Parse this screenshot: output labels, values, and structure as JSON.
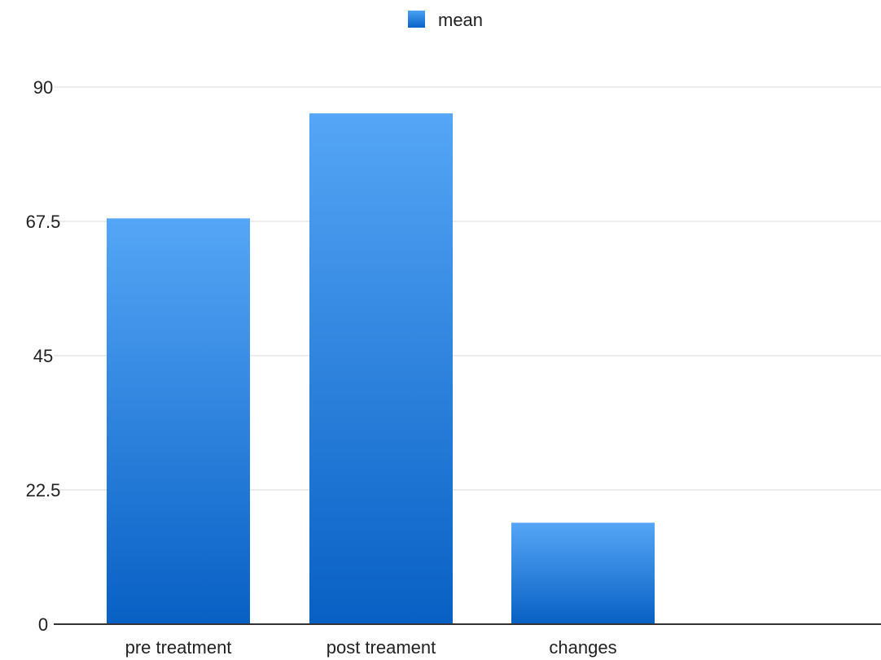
{
  "chart_data": {
    "type": "bar",
    "categories": [
      "pre treatment",
      "post treament",
      "changes"
    ],
    "series": [
      {
        "name": "mean",
        "values": [
          68,
          85.6,
          17
        ]
      }
    ],
    "y_ticks": [
      "0",
      "22.5",
      "45",
      "67.5",
      "90"
    ],
    "ylim": [
      0,
      90
    ],
    "grid": true,
    "legend_position": "top-center",
    "title": "",
    "xlabel": "",
    "ylabel": ""
  },
  "colors": {
    "bar_top": "#55a6f6",
    "bar_bottom": "#0860c4",
    "legend_swatch_top": "#4aa0f2",
    "legend_swatch_bottom": "#0a63c8",
    "grid": "#e6e6e6",
    "axis": "#333333",
    "text": "#222222"
  }
}
